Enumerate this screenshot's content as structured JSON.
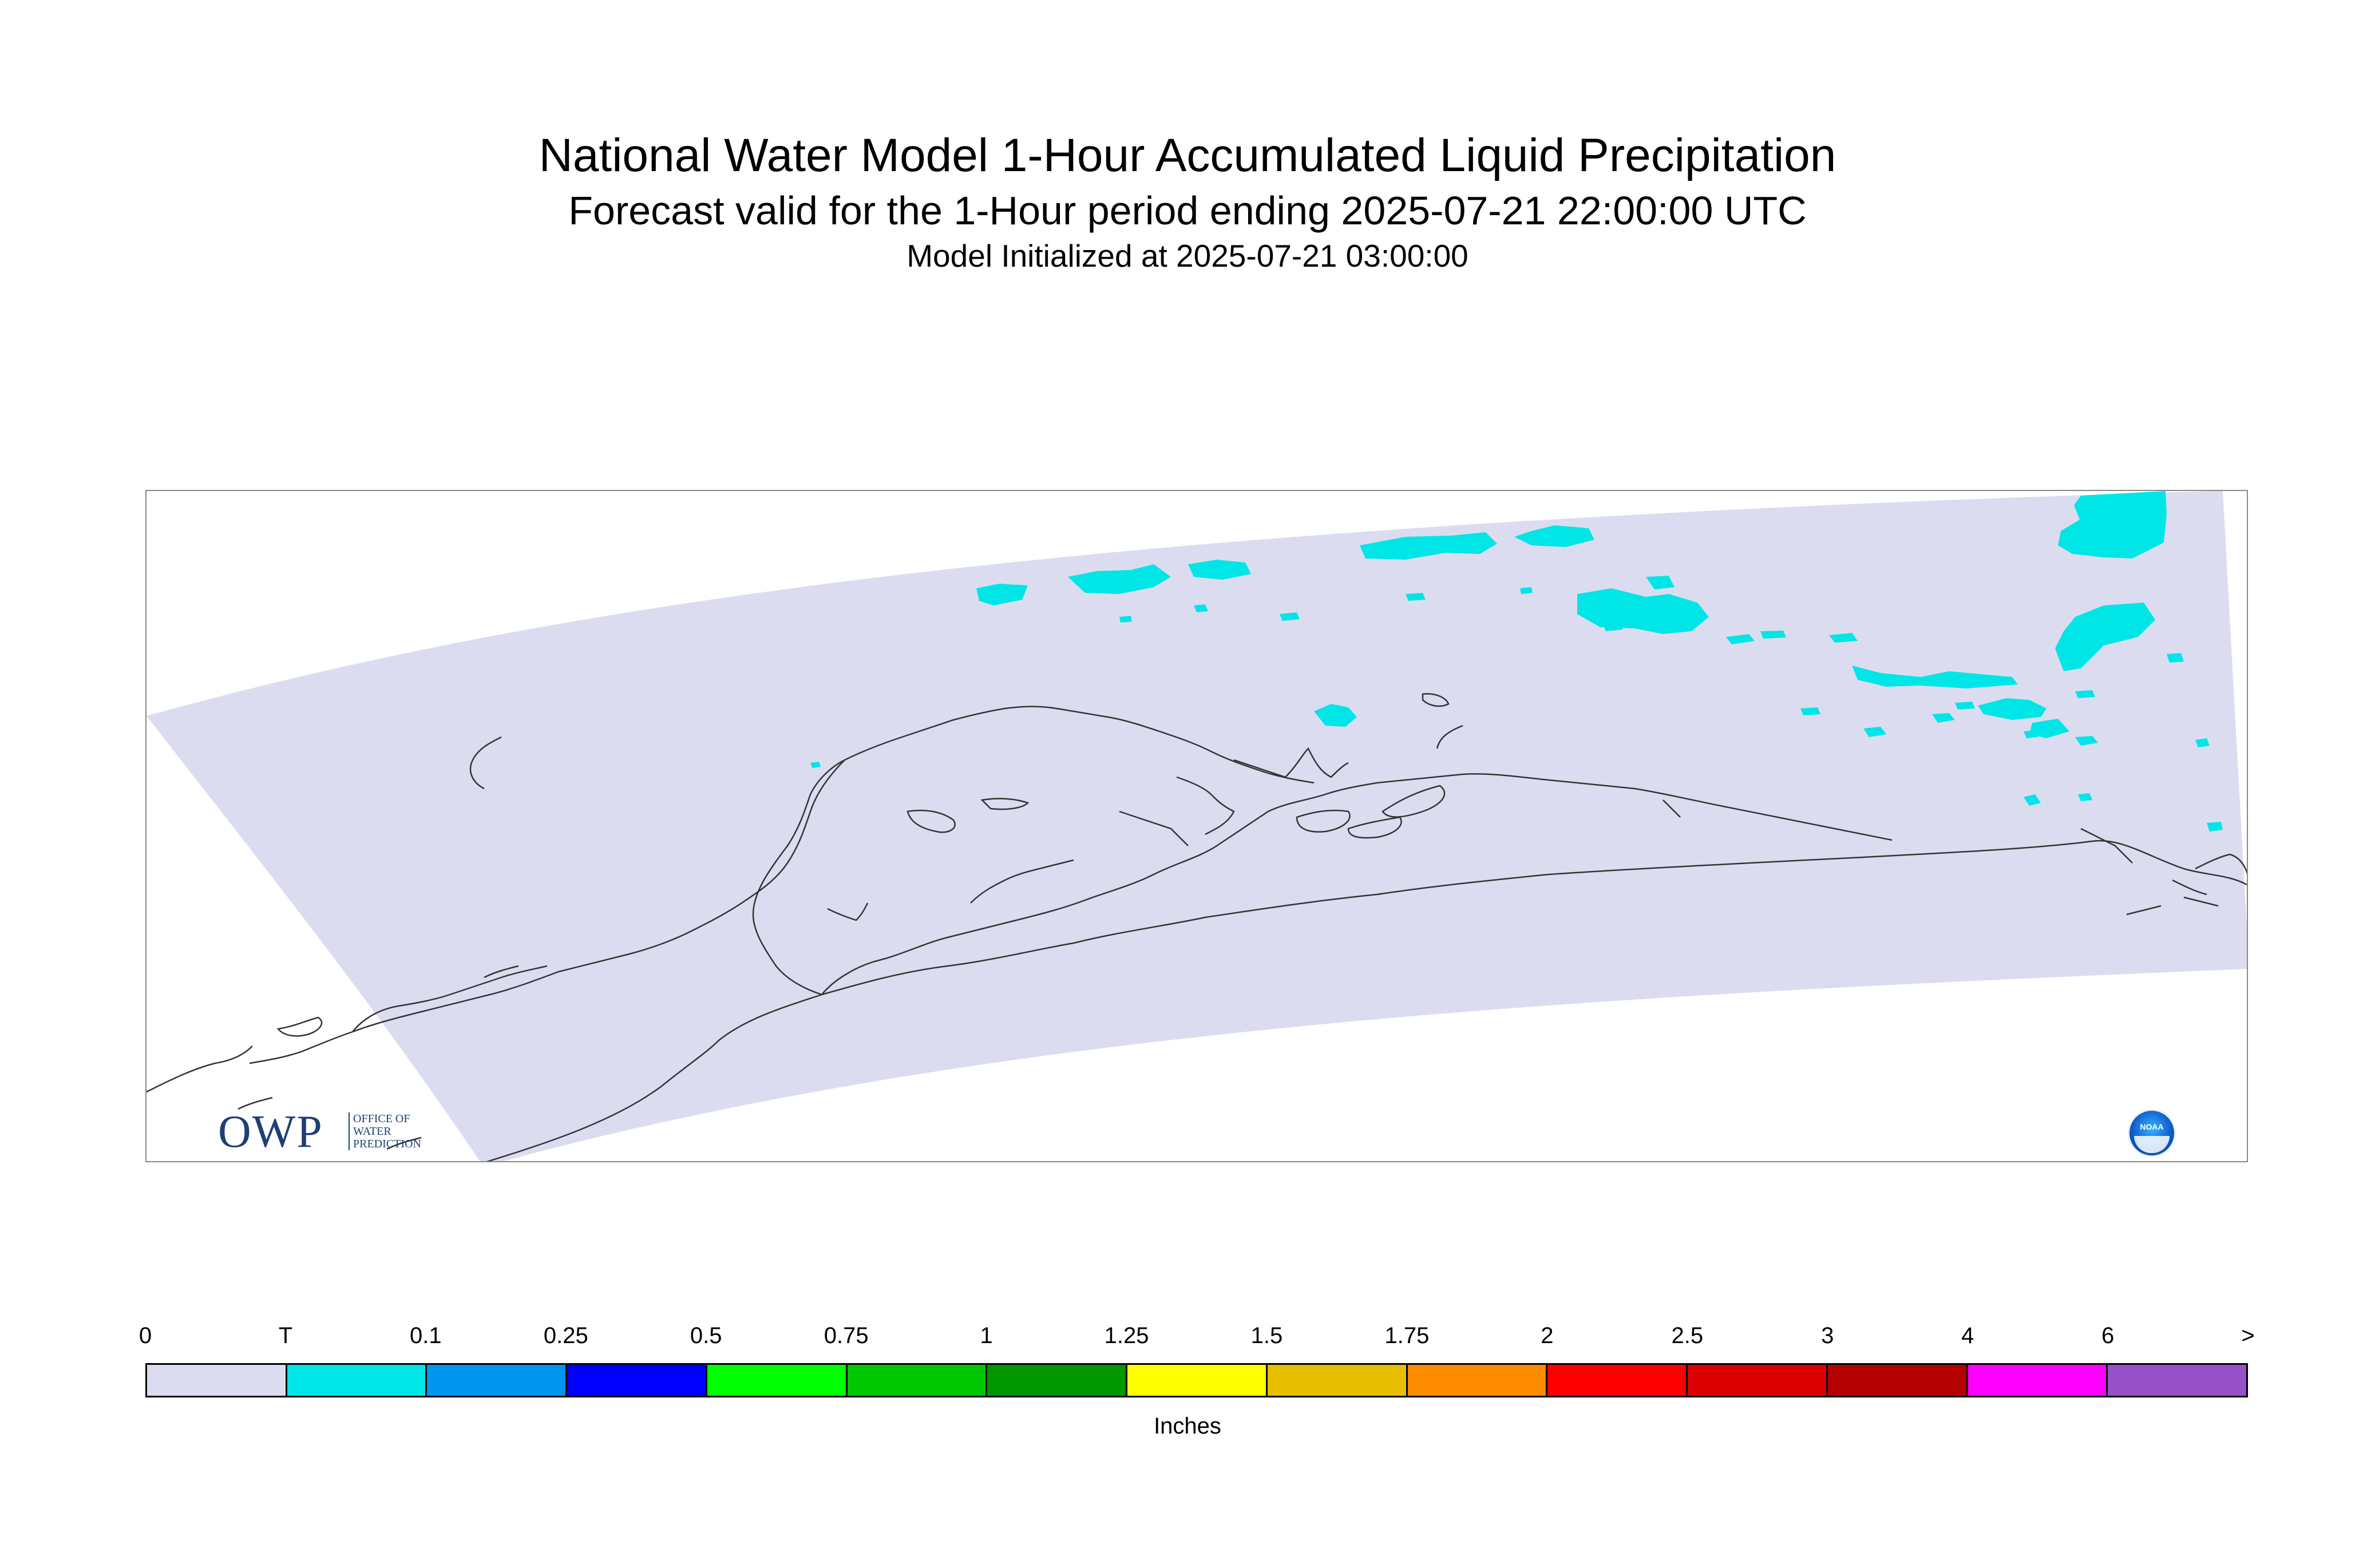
{
  "header": {
    "title": "National Water Model 1-Hour Accumulated Liquid Precipitation",
    "subtitle": "Forecast valid for the 1-Hour period ending 2025-07-21 22:00:00 UTC",
    "initialized": "Model Initialized at 2025-07-21 03:00:00"
  },
  "logos": {
    "owp_letters": "OWP",
    "owp_text": "OFFICE OF WATER PREDICTION",
    "noaa_text": "NOAA"
  },
  "colors": {
    "domain_fill": "#dcdcf0",
    "trace_cyan": "#00e6e6",
    "coastline": "#333333"
  },
  "legend": {
    "unit": "Inches",
    "tick_labels": [
      "0",
      "T",
      "0.1",
      "0.25",
      "0.5",
      "0.75",
      "1",
      "1.25",
      "1.5",
      "1.75",
      "2",
      "2.5",
      "3",
      "4",
      "6",
      ">"
    ],
    "colors": [
      "#dcdcf0",
      "#00e6e6",
      "#0096f0",
      "#0000ff",
      "#00ff00",
      "#00c800",
      "#009600",
      "#ffff00",
      "#e6c000",
      "#ff8c00",
      "#ff0000",
      "#dc0000",
      "#b40000",
      "#ff00ff",
      "#9650c8"
    ]
  }
}
